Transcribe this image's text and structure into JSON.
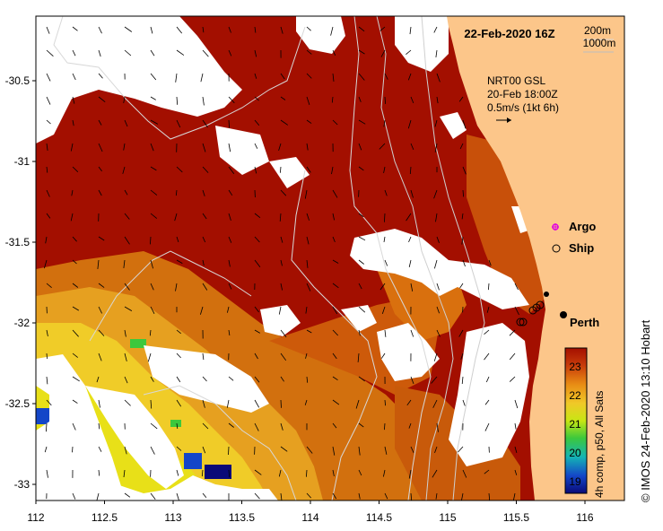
{
  "header": {
    "date_label": "22-Feb-2020 16Z"
  },
  "isobath_legend": {
    "line1": "200m",
    "line2": "1000m"
  },
  "current_legend": {
    "line1": "NRT00 GSL",
    "line2": "20-Feb 18:00Z",
    "line3": "0.5m/s (1kt 6h)"
  },
  "markers": {
    "argo_label": "Argo",
    "ship_label": "Ship",
    "city_label": "Perth"
  },
  "axes": {
    "lon_ticks": [
      "112",
      "112.5",
      "113",
      "113.5",
      "114",
      "114.5",
      "115",
      "115.5",
      "116"
    ],
    "lat_ticks": [
      "-30.5",
      "-31",
      "-31.5",
      "-32",
      "-32.5",
      "-33"
    ]
  },
  "colorbar": {
    "label": "4h comp, p50, All Sats",
    "ticks": [
      "23",
      "22",
      "21",
      "20",
      "19"
    ],
    "colors": [
      "#a30f00",
      "#d9620a",
      "#f0b020",
      "#e6e614",
      "#3cc83c",
      "#14b4b4",
      "#1446c8",
      "#0a0a78"
    ]
  },
  "credit": {
    "text": "© IMOS 24-Feb-2020 13:10 Hobart"
  },
  "palette": {
    "land": "#fcc68a",
    "sst_warm": "#a30f00",
    "sst_orange": "#cd5a0a",
    "sst_yellow": "#f0c828",
    "cloud": "#ffffff"
  }
}
